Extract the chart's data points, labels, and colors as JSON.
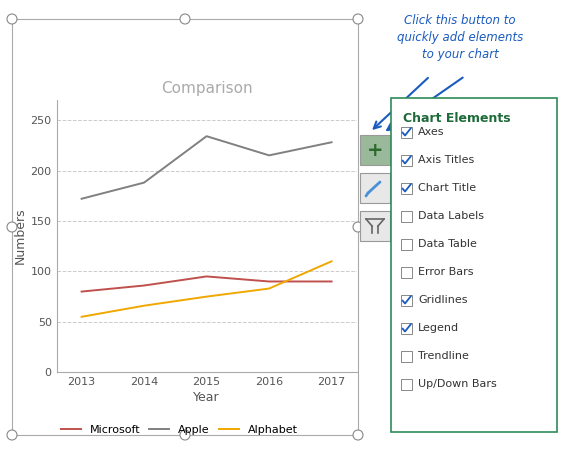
{
  "title": "Comparison",
  "xlabel": "Year",
  "ylabel": "Numbers",
  "years": [
    2013,
    2014,
    2015,
    2016,
    2017
  ],
  "microsoft": [
    80,
    86,
    95,
    90,
    90
  ],
  "apple": [
    172,
    188,
    234,
    215,
    228
  ],
  "alphabet": [
    55,
    66,
    75,
    83,
    110
  ],
  "microsoft_color": "#c0504d",
  "apple_color": "#808080",
  "alphabet_color": "#f0a800",
  "ylim": [
    0,
    270
  ],
  "yticks": [
    0,
    50,
    100,
    150,
    200,
    250
  ],
  "chart_elements": [
    "Axes",
    "Axis Titles",
    "Chart Title",
    "Data Labels",
    "Data Table",
    "Error Bars",
    "Gridlines",
    "Legend",
    "Trendline",
    "Up/Down Bars"
  ],
  "checked": [
    true,
    true,
    true,
    false,
    false,
    false,
    true,
    true,
    false,
    false
  ],
  "panel_title": "Chart Elements",
  "annotation_text": "Click this button to\nquickly add elements\nto your chart",
  "annotation_color": "#1a5bbf",
  "panel_border_color": "#2e8b57",
  "panel_title_color": "#1e6b3a",
  "checkbox_color": "#1a5bbf",
  "button_bg_plus": "#8aab8a",
  "button_bg_default": "#e8e8e8",
  "selection_handle_color": "#aaaaaa",
  "grid_color": "#cccccc",
  "axis_color": "#aaaaaa",
  "title_color": "#aaaaaa",
  "tick_label_color": "#555555",
  "axis_label_color": "#555555"
}
